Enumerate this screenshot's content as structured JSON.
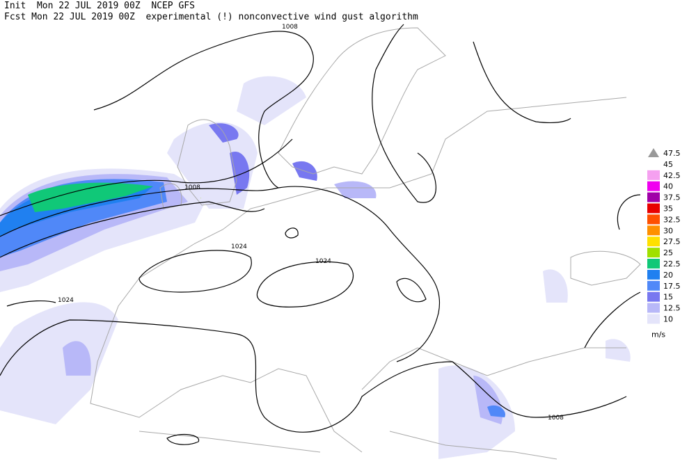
{
  "header": {
    "line1": "Init  Mon 22 JUL 2019 00Z  NCEP GFS",
    "line2": "Fcst Mon 22 JUL 2019 00Z  experimental (!) nonconvective wind gust algorithm"
  },
  "contour_labels": [
    "1008",
    "1008",
    "1024",
    "1024",
    "1024",
    "1008"
  ],
  "legend": {
    "levels": [
      {
        "label": "47.5",
        "color": "#999999"
      },
      {
        "label": "45"
      },
      {
        "label": "42.5",
        "color": "#f5a0f0"
      },
      {
        "label": "40",
        "color": "#f000f0"
      },
      {
        "label": "37.5",
        "color": "#a000a8"
      },
      {
        "label": "35",
        "color": "#e80000"
      },
      {
        "label": "32.5",
        "color": "#ff5000"
      },
      {
        "label": "30",
        "color": "#ff9000"
      },
      {
        "label": "27.5",
        "color": "#ffe000"
      },
      {
        "label": "25",
        "color": "#a0e000"
      },
      {
        "label": "22.5",
        "color": "#10c878"
      },
      {
        "label": "20",
        "color": "#2080f0"
      },
      {
        "label": "17.5",
        "color": "#5088f8"
      },
      {
        "label": "15",
        "color": "#7878f0"
      },
      {
        "label": "12.5",
        "color": "#b8b8f8"
      },
      {
        "label": "10",
        "color": "#e4e4fa"
      }
    ],
    "unit": "m/s"
  }
}
